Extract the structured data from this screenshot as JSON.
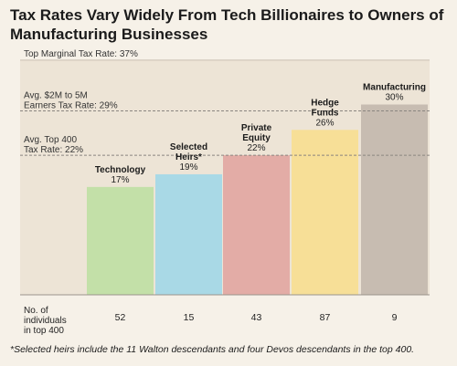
{
  "chart_data": {
    "type": "bar",
    "title": "Tax Rates Vary Widely From Tech Billionaires to Owners of Manufacturing Businesses",
    "categories": [
      "Technology",
      "Selected Heirs*",
      "Private Equity",
      "Hedge Funds",
      "Manufacturing"
    ],
    "category_lines": [
      [
        "Technology"
      ],
      [
        "Selected",
        "Heirs*"
      ],
      [
        "Private",
        "Equity"
      ],
      [
        "Hedge",
        "Funds"
      ],
      [
        "Manufacturing"
      ]
    ],
    "values": [
      17,
      19,
      22,
      26,
      30
    ],
    "value_labels": [
      "17%",
      "19%",
      "22%",
      "26%",
      "30%"
    ],
    "colors": [
      "#c3e0a8",
      "#a9d9e6",
      "#e3aca6",
      "#f7df97",
      "#c7bcb1"
    ],
    "ylim": [
      0,
      37
    ],
    "reference_lines": [
      {
        "value": 37,
        "lines": [
          "Top Marginal Tax Rate: 37%"
        ]
      },
      {
        "value": 29,
        "lines": [
          "Avg. $2M to 5M",
          "Earners Tax Rate: 29%"
        ]
      },
      {
        "value": 22,
        "lines": [
          "Avg. Top 400",
          "Tax Rate: 22%"
        ]
      }
    ],
    "table": {
      "row_label_lines": [
        "No. of",
        "individuals",
        "in top 400"
      ],
      "counts": [
        "52",
        "15",
        "43",
        "87",
        "9"
      ]
    },
    "footnote": "*Selected heirs include the 11 Walton descendants and four Devos descendants in the top 400."
  }
}
